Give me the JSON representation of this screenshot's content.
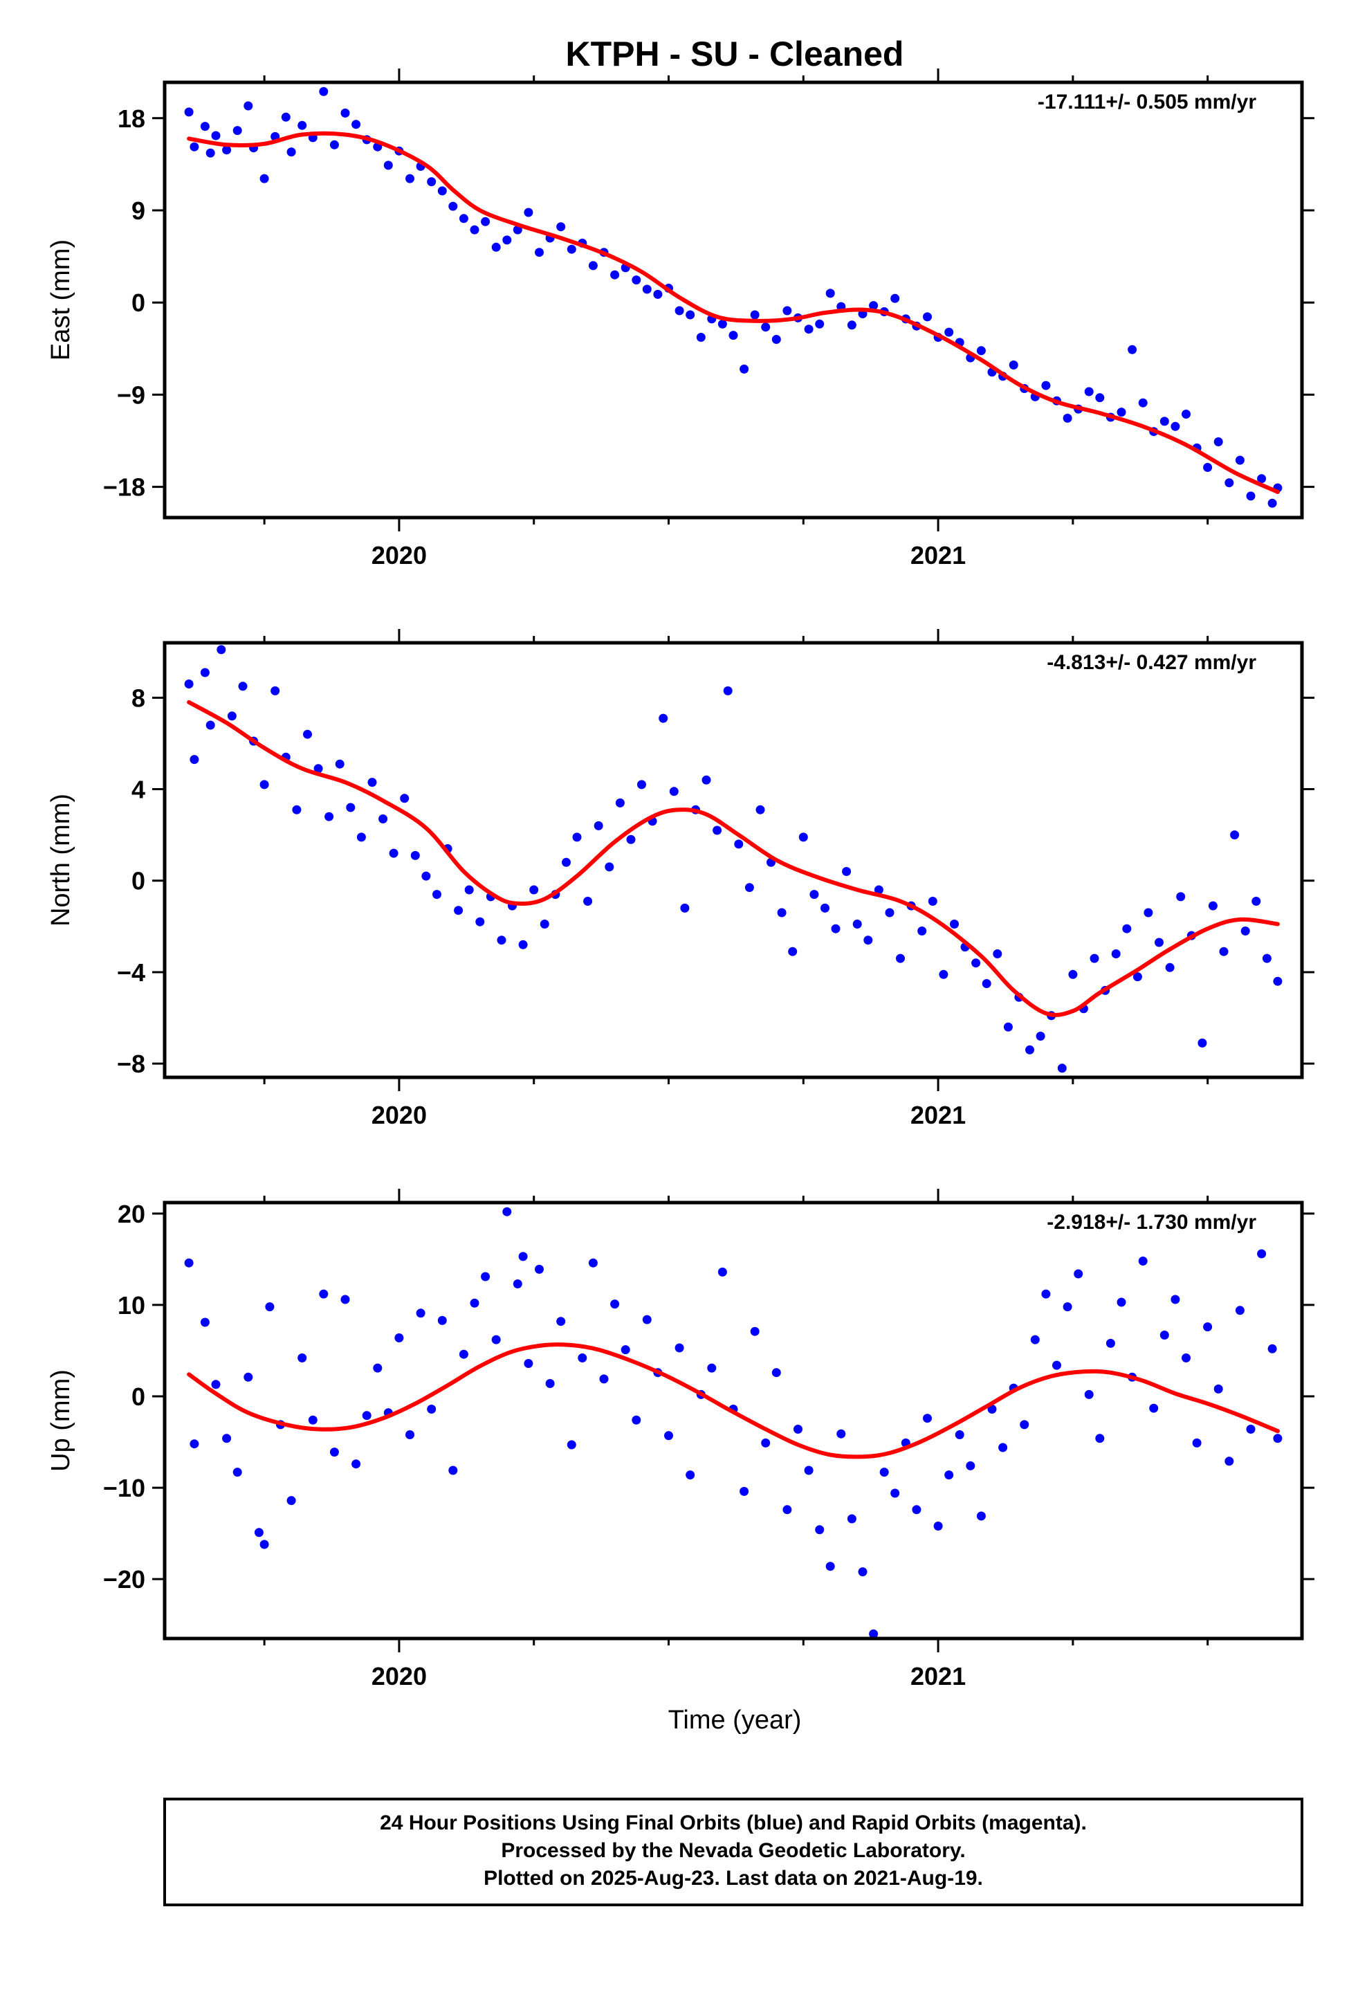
{
  "title": "KTPH  - SU - Cleaned",
  "xlabel": "Time (year)",
  "footer": {
    "line1": "24 Hour Positions Using Final Orbits (blue) and Rapid Orbits (magenta).",
    "line2": "Processed by the Nevada Geodetic Laboratory.",
    "line3": "Plotted on 2025-Aug-23. Last data on 2021-Aug-19."
  },
  "colors": {
    "points": "#0000ff",
    "fit": "#ff0000",
    "frame": "#000000"
  },
  "chart_data": [
    {
      "type": "scatter",
      "ylabel": "East (mm)",
      "rate_text": "-17.111+/- 0.505 mm/yr",
      "xlim": [
        2019.565,
        2021.675
      ],
      "ylim": [
        -21,
        21.5
      ],
      "x_tick_labels": [
        "2020",
        "2021"
      ],
      "x_major_ticks": [
        2020,
        2021
      ],
      "x_minor_ticks": [
        2019.75,
        2020.25,
        2020.5,
        2020.75,
        2021.25,
        2021.5
      ],
      "y_ticks": [
        18,
        9,
        0,
        -9,
        -18
      ],
      "y_tick_labels": [
        "18",
        "9",
        "0",
        "−9",
        "−18"
      ],
      "fit_curve": {
        "x": [
          2019.61,
          2019.68,
          2019.75,
          2019.82,
          2019.9,
          2019.97,
          2020.05,
          2020.1,
          2020.15,
          2020.22,
          2020.3,
          2020.38,
          2020.45,
          2020.52,
          2020.59,
          2020.66,
          2020.73,
          2020.79,
          2020.86,
          2020.92,
          2021.0,
          2021.08,
          2021.15,
          2021.22,
          2021.3,
          2021.38,
          2021.46,
          2021.55,
          2021.63
        ],
        "y": [
          16,
          15.4,
          15.5,
          16.4,
          16.4,
          15.5,
          13.4,
          11,
          9,
          7.6,
          6.3,
          4.8,
          3,
          0.5,
          -1.4,
          -1.8,
          -1.6,
          -1,
          -0.7,
          -1.3,
          -3.2,
          -5.6,
          -8,
          -9.7,
          -10.8,
          -12.1,
          -13.9,
          -16.6,
          -18.5
        ]
      },
      "series": [
        {
          "name": "Final Orbits",
          "x": [
            2019.61,
            2019.62,
            2019.64,
            2019.65,
            2019.66,
            2019.68,
            2019.7,
            2019.72,
            2019.73,
            2019.75,
            2019.77,
            2019.79,
            2019.8,
            2019.82,
            2019.84,
            2019.86,
            2019.88,
            2019.9,
            2019.92,
            2019.94,
            2019.96,
            2019.98,
            2020.0,
            2020.02,
            2020.04,
            2020.06,
            2020.08,
            2020.1,
            2020.12,
            2020.14,
            2020.16,
            2020.18,
            2020.2,
            2020.22,
            2020.24,
            2020.26,
            2020.28,
            2020.3,
            2020.32,
            2020.34,
            2020.36,
            2020.38,
            2020.4,
            2020.42,
            2020.44,
            2020.46,
            2020.48,
            2020.5,
            2020.52,
            2020.54,
            2020.56,
            2020.58,
            2020.6,
            2020.62,
            2020.64,
            2020.66,
            2020.68,
            2020.7,
            2020.72,
            2020.74,
            2020.76,
            2020.78,
            2020.8,
            2020.82,
            2020.84,
            2020.86,
            2020.88,
            2020.9,
            2020.92,
            2020.94,
            2020.96,
            2020.98,
            2021.0,
            2021.02,
            2021.04,
            2021.06,
            2021.08,
            2021.1,
            2021.12,
            2021.14,
            2021.16,
            2021.18,
            2021.2,
            2021.22,
            2021.24,
            2021.26,
            2021.28,
            2021.3,
            2021.32,
            2021.34,
            2021.36,
            2021.38,
            2021.4,
            2021.42,
            2021.44,
            2021.46,
            2021.48,
            2021.5,
            2021.52,
            2021.54,
            2021.56,
            2021.58,
            2021.6,
            2021.62,
            2021.63
          ],
          "y": [
            18.6,
            15.2,
            17.2,
            14.6,
            16.3,
            14.9,
            16.8,
            19.2,
            15.1,
            12.1,
            16.2,
            18.1,
            14.7,
            17.3,
            16.1,
            20.6,
            15.4,
            18.5,
            17.4,
            15.9,
            15.2,
            13.4,
            14.8,
            12.1,
            13.3,
            11.8,
            10.9,
            9.4,
            8.2,
            7.1,
            7.9,
            5.4,
            6.1,
            7.1,
            8.8,
            4.9,
            6.3,
            7.4,
            5.2,
            5.8,
            3.6,
            4.9,
            2.7,
            3.4,
            2.2,
            1.3,
            0.8,
            1.4,
            -0.8,
            -1.2,
            -3.4,
            -1.6,
            -2.1,
            -3.2,
            -6.5,
            -1.2,
            -2.4,
            -3.6,
            -0.8,
            -1.5,
            -2.6,
            -2.1,
            0.9,
            -0.4,
            -2.2,
            -1.1,
            -0.3,
            -0.9,
            0.4,
            -1.6,
            -2.3,
            -1.4,
            -3.4,
            -2.9,
            -3.9,
            -5.4,
            -4.7,
            -6.8,
            -7.2,
            -6.1,
            -8.4,
            -9.2,
            -8.1,
            -9.6,
            -11.3,
            -10.4,
            -8.7,
            -9.3,
            -11.2,
            -10.7,
            -4.6,
            -9.8,
            -12.6,
            -11.6,
            -12.1,
            -10.9,
            -14.2,
            -16.1,
            -13.6,
            -17.6,
            -15.4,
            -18.9,
            -17.2,
            -19.6,
            -18.1
          ]
        }
      ]
    },
    {
      "type": "scatter",
      "ylabel": "North (mm)",
      "rate_text": "-4.813+/- 0.427 mm/yr",
      "xlim": [
        2019.565,
        2021.675
      ],
      "ylim": [
        -8.6,
        10.4
      ],
      "x_tick_labels": [
        "2020",
        "2021"
      ],
      "x_major_ticks": [
        2020,
        2021
      ],
      "x_minor_ticks": [
        2019.75,
        2020.25,
        2020.5,
        2020.75,
        2021.25,
        2021.5
      ],
      "y_ticks": [
        8,
        4,
        0,
        -4,
        -8
      ],
      "y_tick_labels": [
        "8",
        "4",
        "0",
        "−4",
        "−8"
      ],
      "fit_curve": {
        "x": [
          2019.61,
          2019.68,
          2019.75,
          2019.82,
          2019.9,
          2019.97,
          2020.05,
          2020.12,
          2020.18,
          2020.22,
          2020.27,
          2020.33,
          2020.4,
          2020.47,
          2020.52,
          2020.57,
          2020.63,
          2020.7,
          2020.77,
          2020.85,
          2020.93,
          2021.0,
          2021.08,
          2021.14,
          2021.2,
          2021.25,
          2021.3,
          2021.37,
          2021.43,
          2021.5,
          2021.56,
          2021.63
        ],
        "y": [
          7.8,
          6.9,
          5.8,
          4.9,
          4.3,
          3.5,
          2.3,
          0.4,
          -0.7,
          -1,
          -0.8,
          0.2,
          1.7,
          2.8,
          3.1,
          2.9,
          2,
          0.9,
          0.2,
          -0.4,
          -0.9,
          -1.8,
          -3.3,
          -4.8,
          -5.8,
          -5.7,
          -4.9,
          -3.9,
          -3,
          -2.1,
          -1.7,
          -1.9
        ]
      },
      "series": [
        {
          "name": "Final Orbits",
          "x": [
            2019.61,
            2019.62,
            2019.64,
            2019.65,
            2019.67,
            2019.69,
            2019.71,
            2019.73,
            2019.75,
            2019.77,
            2019.79,
            2019.81,
            2019.83,
            2019.85,
            2019.87,
            2019.89,
            2019.91,
            2019.93,
            2019.95,
            2019.97,
            2019.99,
            2020.01,
            2020.03,
            2020.05,
            2020.07,
            2020.09,
            2020.11,
            2020.13,
            2020.15,
            2020.17,
            2020.19,
            2020.21,
            2020.23,
            2020.25,
            2020.27,
            2020.29,
            2020.31,
            2020.33,
            2020.35,
            2020.37,
            2020.39,
            2020.41,
            2020.43,
            2020.45,
            2020.47,
            2020.49,
            2020.51,
            2020.53,
            2020.55,
            2020.57,
            2020.59,
            2020.61,
            2020.63,
            2020.65,
            2020.67,
            2020.69,
            2020.71,
            2020.73,
            2020.75,
            2020.77,
            2020.79,
            2020.81,
            2020.83,
            2020.85,
            2020.87,
            2020.89,
            2020.91,
            2020.93,
            2020.95,
            2020.97,
            2020.99,
            2021.01,
            2021.03,
            2021.05,
            2021.07,
            2021.09,
            2021.11,
            2021.13,
            2021.15,
            2021.17,
            2021.19,
            2021.21,
            2021.23,
            2021.25,
            2021.27,
            2021.29,
            2021.31,
            2021.33,
            2021.35,
            2021.37,
            2021.39,
            2021.41,
            2021.43,
            2021.45,
            2021.47,
            2021.49,
            2021.51,
            2021.53,
            2021.55,
            2021.57,
            2021.59,
            2021.61,
            2021.63
          ],
          "y": [
            8.6,
            5.3,
            9.1,
            6.8,
            10.1,
            7.2,
            8.5,
            6.1,
            4.2,
            8.3,
            5.4,
            3.1,
            6.4,
            4.9,
            2.8,
            5.1,
            3.2,
            1.9,
            4.3,
            2.7,
            1.2,
            3.6,
            1.1,
            0.2,
            -0.6,
            1.4,
            -1.3,
            -0.4,
            -1.8,
            -0.7,
            -2.6,
            -1.1,
            -2.8,
            -0.4,
            -1.9,
            -0.6,
            0.8,
            1.9,
            -0.9,
            2.4,
            0.6,
            3.4,
            1.8,
            4.2,
            2.6,
            7.1,
            3.9,
            -1.2,
            3.1,
            4.4,
            2.2,
            8.3,
            1.6,
            -0.3,
            3.1,
            0.8,
            -1.4,
            -3.1,
            1.9,
            -0.6,
            -1.2,
            -2.1,
            0.4,
            -1.9,
            -2.6,
            -0.4,
            -1.4,
            -3.4,
            -1.1,
            -2.2,
            -0.9,
            -4.1,
            -1.9,
            -2.9,
            -3.6,
            -4.5,
            -3.2,
            -6.4,
            -5.1,
            -7.4,
            -6.8,
            -5.9,
            -8.2,
            -4.1,
            -5.6,
            -3.4,
            -4.8,
            -3.2,
            -2.1,
            -4.2,
            -1.4,
            -2.7,
            -3.8,
            -0.7,
            -2.4,
            -7.1,
            -1.1,
            -3.1,
            2.0,
            -2.2,
            -0.9,
            -3.4,
            -4.4
          ]
        }
      ]
    },
    {
      "type": "scatter",
      "ylabel": "Up (mm)",
      "rate_text": "-2.918+/- 1.730 mm/yr",
      "xlim": [
        2019.565,
        2021.675
      ],
      "ylim": [
        -26.5,
        21.2
      ],
      "x_tick_labels": [
        "2020",
        "2021"
      ],
      "x_major_ticks": [
        2020,
        2021
      ],
      "x_minor_ticks": [
        2019.75,
        2020.25,
        2020.5,
        2020.75,
        2021.25,
        2021.5
      ],
      "y_ticks": [
        20,
        10,
        0,
        -10,
        -20
      ],
      "y_tick_labels": [
        "20",
        "10",
        "0",
        "−10",
        "−20"
      ],
      "fit_curve": {
        "x": [
          2019.61,
          2019.66,
          2019.72,
          2019.79,
          2019.85,
          2019.91,
          2019.97,
          2020.03,
          2020.09,
          2020.15,
          2020.21,
          2020.27,
          2020.32,
          2020.37,
          2020.43,
          2020.49,
          2020.55,
          2020.61,
          2020.68,
          2020.74,
          2020.8,
          2020.86,
          2020.91,
          2020.97,
          2021.03,
          2021.09,
          2021.15,
          2021.21,
          2021.27,
          2021.32,
          2021.38,
          2021.44,
          2021.5,
          2021.56,
          2021.63
        ],
        "y": [
          2.4,
          0.3,
          -1.8,
          -3.1,
          -3.6,
          -3.4,
          -2.4,
          -0.8,
          1.2,
          3.3,
          4.9,
          5.6,
          5.6,
          5.1,
          3.9,
          2.4,
          0.6,
          -1.4,
          -3.6,
          -5.3,
          -6.4,
          -6.6,
          -6.2,
          -4.9,
          -3.1,
          -1.1,
          0.9,
          2.2,
          2.7,
          2.6,
          1.7,
          0.3,
          -0.8,
          -2.1,
          -3.8
        ]
      },
      "series": [
        {
          "name": "Final Orbits",
          "x": [
            2019.61,
            2019.62,
            2019.64,
            2019.66,
            2019.68,
            2019.7,
            2019.72,
            2019.74,
            2019.75,
            2019.76,
            2019.78,
            2019.8,
            2019.82,
            2019.84,
            2019.86,
            2019.88,
            2019.9,
            2019.92,
            2019.94,
            2019.96,
            2019.98,
            2020.0,
            2020.02,
            2020.04,
            2020.06,
            2020.08,
            2020.1,
            2020.12,
            2020.14,
            2020.16,
            2020.18,
            2020.2,
            2020.22,
            2020.23,
            2020.24,
            2020.26,
            2020.28,
            2020.3,
            2020.32,
            2020.34,
            2020.36,
            2020.38,
            2020.4,
            2020.42,
            2020.44,
            2020.46,
            2020.48,
            2020.5,
            2020.52,
            2020.54,
            2020.56,
            2020.58,
            2020.6,
            2020.62,
            2020.64,
            2020.66,
            2020.68,
            2020.7,
            2020.72,
            2020.74,
            2020.76,
            2020.78,
            2020.8,
            2020.82,
            2020.84,
            2020.86,
            2020.88,
            2020.9,
            2020.92,
            2020.94,
            2020.96,
            2020.98,
            2021.0,
            2021.02,
            2021.04,
            2021.06,
            2021.08,
            2021.1,
            2021.12,
            2021.14,
            2021.16,
            2021.18,
            2021.2,
            2021.22,
            2021.24,
            2021.26,
            2021.28,
            2021.3,
            2021.32,
            2021.34,
            2021.36,
            2021.38,
            2021.4,
            2021.42,
            2021.44,
            2021.46,
            2021.48,
            2021.5,
            2021.52,
            2021.54,
            2021.56,
            2021.58,
            2021.6,
            2021.62,
            2021.63
          ],
          "y": [
            14.6,
            -5.2,
            8.1,
            1.3,
            -4.6,
            -8.3,
            2.1,
            -14.9,
            -16.2,
            9.8,
            -3.1,
            -11.4,
            4.2,
            -2.6,
            11.2,
            -6.1,
            10.6,
            -7.4,
            -2.1,
            3.1,
            -1.8,
            6.4,
            -4.2,
            9.1,
            -1.4,
            8.3,
            -8.1,
            4.6,
            10.2,
            13.1,
            6.2,
            20.2,
            12.3,
            15.3,
            3.6,
            13.9,
            1.4,
            8.2,
            -5.3,
            4.2,
            14.6,
            1.9,
            10.1,
            5.1,
            -2.6,
            8.4,
            2.6,
            -4.3,
            5.3,
            -8.6,
            0.2,
            3.1,
            13.6,
            -1.4,
            -10.4,
            7.1,
            -5.1,
            2.6,
            -12.4,
            -3.6,
            -8.1,
            -14.6,
            -18.6,
            -4.1,
            -13.4,
            -19.2,
            -26,
            -8.3,
            -10.6,
            -5.1,
            -12.4,
            -2.4,
            -14.2,
            -8.6,
            -4.2,
            -7.6,
            -13.1,
            -1.4,
            -5.6,
            0.9,
            -3.1,
            6.2,
            11.2,
            3.4,
            9.8,
            13.4,
            0.2,
            -4.6,
            5.8,
            10.3,
            2.1,
            14.8,
            -1.3,
            6.7,
            10.6,
            4.2,
            -5.1,
            7.6,
            0.8,
            -7.1,
            9.4,
            -3.6,
            15.6,
            5.2,
            -4.6
          ]
        }
      ]
    }
  ]
}
